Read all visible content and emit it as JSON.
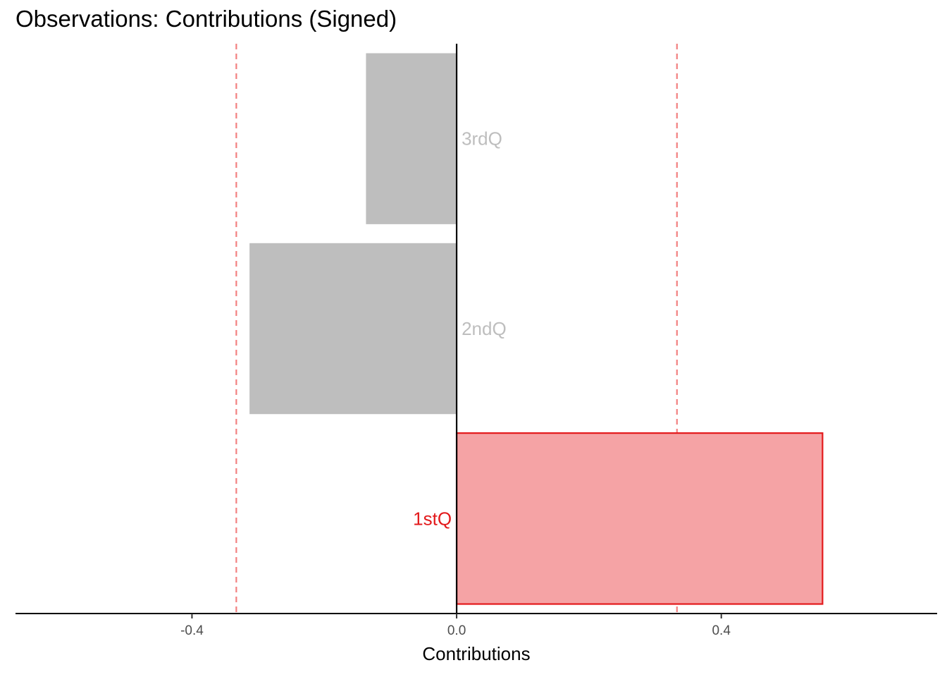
{
  "chart_data": {
    "type": "bar",
    "orientation": "horizontal",
    "title": "Observations: Contributions (Signed)",
    "xlabel": "Contributions",
    "ylabel": "",
    "xlim": [
      -0.6667,
      0.7262
    ],
    "xticks": [
      -0.4,
      0.0,
      0.4
    ],
    "xtick_labels": [
      "-0.4",
      "0.0",
      "0.4"
    ],
    "categories": [
      "1stQ",
      "2ndQ",
      "3rdQ"
    ],
    "values": [
      0.553,
      -0.313,
      -0.137
    ],
    "highlighted": [
      true,
      false,
      false
    ],
    "threshold_lines": [
      -0.333,
      0.333
    ],
    "grid": false,
    "legend": "none",
    "colors": {
      "highlight_fill": "#F5A3A5",
      "highlight_edge": "#E31A1C",
      "highlight_label": "#E31A1C",
      "normal_fill": "#BEBEBE",
      "normal_label": "#BEBEBE",
      "threshold_line": "#F28080",
      "axis": "#000000",
      "tick_label": "#4D4D4D"
    }
  }
}
